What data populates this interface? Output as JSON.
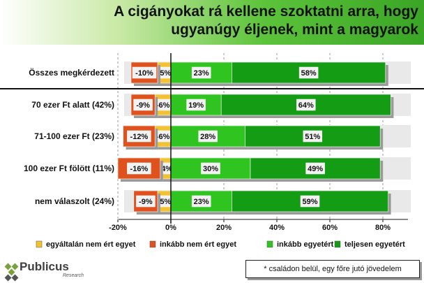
{
  "title_lines": [
    "A cigányokat rá kellene szoktatni arra, hogy",
    "ugyanúgy éljenek, mint a magyarok"
  ],
  "footnote": "* családon belül, egy főre jutó jövedelem",
  "logo": {
    "name": "Publicus",
    "sub": "Research"
  },
  "chart_data": {
    "type": "bar",
    "orientation": "horizontal-stacked-diverging",
    "categories": [
      "Összes megkérdezett",
      "70 ezer Ft alatt (42%)",
      "71-100 ezer Ft (23%)",
      "100 ezer Ft fölött (11%)",
      "nem válaszolt (24%)"
    ],
    "series": [
      {
        "name": "egyáltalán nem ért egyet",
        "color": "#f2c233",
        "values": [
          -5,
          -6,
          -6,
          -4,
          -5
        ]
      },
      {
        "name": "inkább nem ért egyet",
        "color": "#e0521d",
        "values": [
          -10,
          -9,
          -12,
          -16,
          -9
        ]
      },
      {
        "name": "inkább egyetért",
        "color": "#2fc41f",
        "values": [
          23,
          19,
          28,
          30,
          23
        ]
      },
      {
        "name": "teljesen egyetért",
        "color": "#149c14",
        "values": [
          58,
          64,
          51,
          49,
          59
        ]
      }
    ],
    "xlim": [
      -20,
      80
    ],
    "xticks": [
      -20,
      0,
      20,
      40,
      60,
      80
    ],
    "xtick_labels": [
      "-20%",
      "0%",
      "20%",
      "40%",
      "60%",
      "80%"
    ],
    "grid": true,
    "legend": "bottom"
  }
}
